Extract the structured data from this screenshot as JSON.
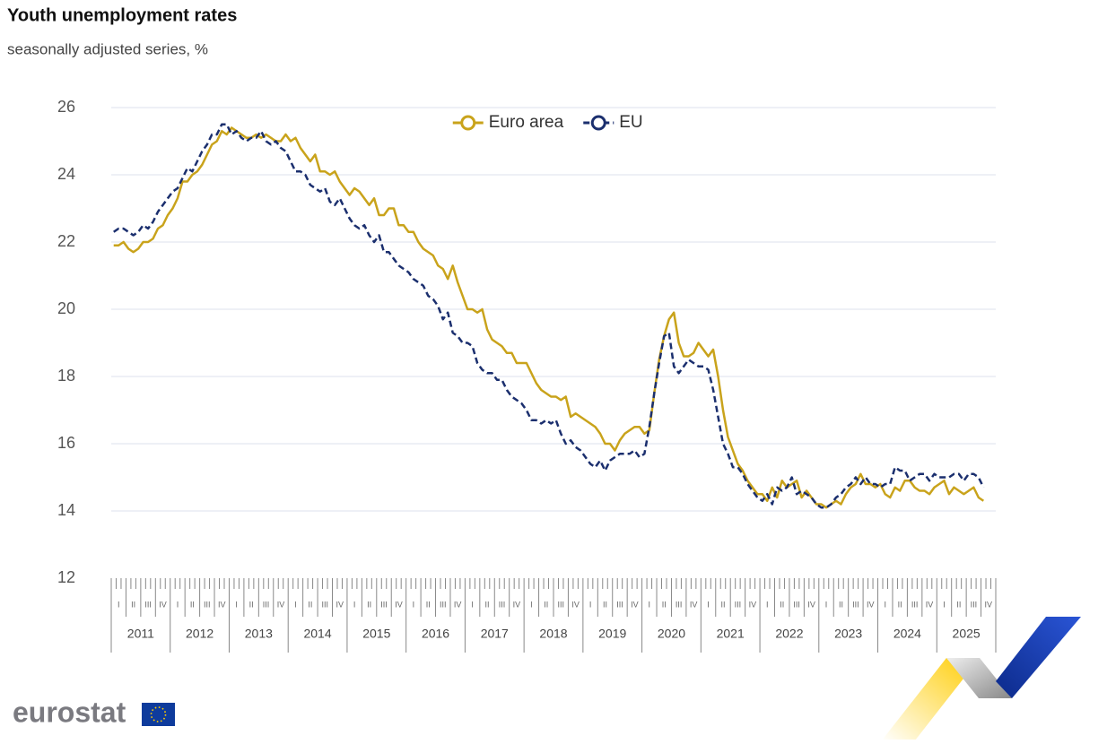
{
  "chart_data": {
    "type": "line",
    "title": "Youth unemployment rates",
    "subtitle": "seasonally adjusted series, %",
    "years": [
      "2011",
      "2012",
      "2013",
      "2014",
      "2015",
      "2016",
      "2017",
      "2018",
      "2019",
      "2020",
      "2021",
      "2022",
      "2023",
      "2024",
      "2025"
    ],
    "quarters": [
      "I",
      "II",
      "III",
      "IV"
    ],
    "ylim": [
      12,
      26
    ],
    "yticks": [
      12,
      14,
      16,
      18,
      20,
      22,
      24,
      26
    ],
    "grid": true,
    "legend": "top",
    "series": [
      {
        "name": "Euro area",
        "color": "#c9a31b",
        "dash": false,
        "values": [
          21.9,
          21.9,
          22.0,
          21.8,
          21.7,
          21.8,
          22.0,
          22.0,
          22.1,
          22.4,
          22.5,
          22.8,
          23.0,
          23.3,
          23.8,
          23.8,
          24.0,
          24.1,
          24.3,
          24.6,
          24.9,
          25.0,
          25.3,
          25.2,
          25.4,
          25.3,
          25.2,
          25.1,
          25.1,
          25.2,
          25.1,
          25.2,
          25.1,
          25.0,
          25.0,
          25.2,
          25.0,
          25.1,
          24.8,
          24.6,
          24.4,
          24.6,
          24.1,
          24.1,
          24.0,
          24.1,
          23.8,
          23.6,
          23.4,
          23.6,
          23.5,
          23.3,
          23.1,
          23.3,
          22.8,
          22.8,
          23.0,
          23.0,
          22.5,
          22.5,
          22.3,
          22.3,
          22.0,
          21.8,
          21.7,
          21.6,
          21.3,
          21.2,
          20.9,
          21.3,
          20.8,
          20.4,
          20.0,
          20.0,
          19.9,
          20.0,
          19.4,
          19.1,
          19.0,
          18.9,
          18.7,
          18.7,
          18.4,
          18.4,
          18.4,
          18.1,
          17.8,
          17.6,
          17.5,
          17.4,
          17.4,
          17.3,
          17.4,
          16.8,
          16.9,
          16.8,
          16.7,
          16.6,
          16.5,
          16.3,
          16.0,
          16.0,
          15.8,
          16.1,
          16.3,
          16.4,
          16.5,
          16.5,
          16.3,
          16.4,
          17.5,
          18.5,
          19.2,
          19.7,
          19.9,
          19.0,
          18.6,
          18.6,
          18.7,
          19.0,
          18.8,
          18.6,
          18.8,
          18.0,
          17.0,
          16.2,
          15.8,
          15.4,
          15.2,
          14.9,
          14.7,
          14.5,
          14.5,
          14.3,
          14.7,
          14.4,
          14.9,
          14.7,
          14.8,
          14.9,
          14.4,
          14.6,
          14.4,
          14.2,
          14.2,
          14.1,
          14.2,
          14.3,
          14.2,
          14.5,
          14.7,
          14.8,
          15.1,
          14.8,
          14.8,
          14.7,
          14.8,
          14.5,
          14.4,
          14.7,
          14.6,
          14.9,
          14.9,
          14.7,
          14.6,
          14.6,
          14.5,
          14.7,
          14.8,
          14.9,
          14.5,
          14.7,
          14.6,
          14.5,
          14.6,
          14.7,
          14.4,
          14.3
        ]
      },
      {
        "name": "EU",
        "color": "#1b2f6e",
        "dash": true,
        "values": [
          22.3,
          22.4,
          22.4,
          22.3,
          22.2,
          22.3,
          22.5,
          22.4,
          22.6,
          22.9,
          23.1,
          23.3,
          23.5,
          23.6,
          23.9,
          24.2,
          24.1,
          24.4,
          24.7,
          24.9,
          25.2,
          25.2,
          25.5,
          25.5,
          25.2,
          25.3,
          25.1,
          25.0,
          25.1,
          25.1,
          25.3,
          25.0,
          24.9,
          25.0,
          24.8,
          24.7,
          24.4,
          24.1,
          24.1,
          24.0,
          23.7,
          23.6,
          23.5,
          23.6,
          23.2,
          23.1,
          23.3,
          23.0,
          22.7,
          22.5,
          22.4,
          22.5,
          22.2,
          22.0,
          22.2,
          21.7,
          21.7,
          21.5,
          21.3,
          21.2,
          21.1,
          20.9,
          20.8,
          20.7,
          20.4,
          20.3,
          20.1,
          19.7,
          19.9,
          19.3,
          19.2,
          19.0,
          19.0,
          18.9,
          18.4,
          18.2,
          18.1,
          18.1,
          17.9,
          17.9,
          17.6,
          17.4,
          17.3,
          17.2,
          17.0,
          16.7,
          16.7,
          16.6,
          16.7,
          16.6,
          16.7,
          16.3,
          16.0,
          16.1,
          15.9,
          15.8,
          15.6,
          15.4,
          15.3,
          15.5,
          15.2,
          15.5,
          15.6,
          15.7,
          15.7,
          15.7,
          15.8,
          15.6,
          15.7,
          16.5,
          17.5,
          18.4,
          19.2,
          19.3,
          18.3,
          18.1,
          18.3,
          18.5,
          18.4,
          18.3,
          18.3,
          18.2,
          17.6,
          16.8,
          16.0,
          15.7,
          15.3,
          15.3,
          15.1,
          14.8,
          14.6,
          14.4,
          14.3,
          14.5,
          14.2,
          14.7,
          14.6,
          14.7,
          15.0,
          14.5,
          14.6,
          14.5,
          14.4,
          14.2,
          14.1,
          14.1,
          14.2,
          14.4,
          14.5,
          14.7,
          14.8,
          15.0,
          14.8,
          15.0,
          14.8,
          14.8,
          14.7,
          14.8,
          14.8,
          15.3,
          15.2,
          15.2,
          14.9,
          15.0,
          15.1,
          15.1,
          14.9,
          15.1,
          15.0,
          15.0,
          15.0,
          15.1,
          15.1,
          14.9,
          15.1,
          15.1,
          15.0,
          14.7
        ]
      }
    ]
  },
  "logo_text": "eurostat"
}
